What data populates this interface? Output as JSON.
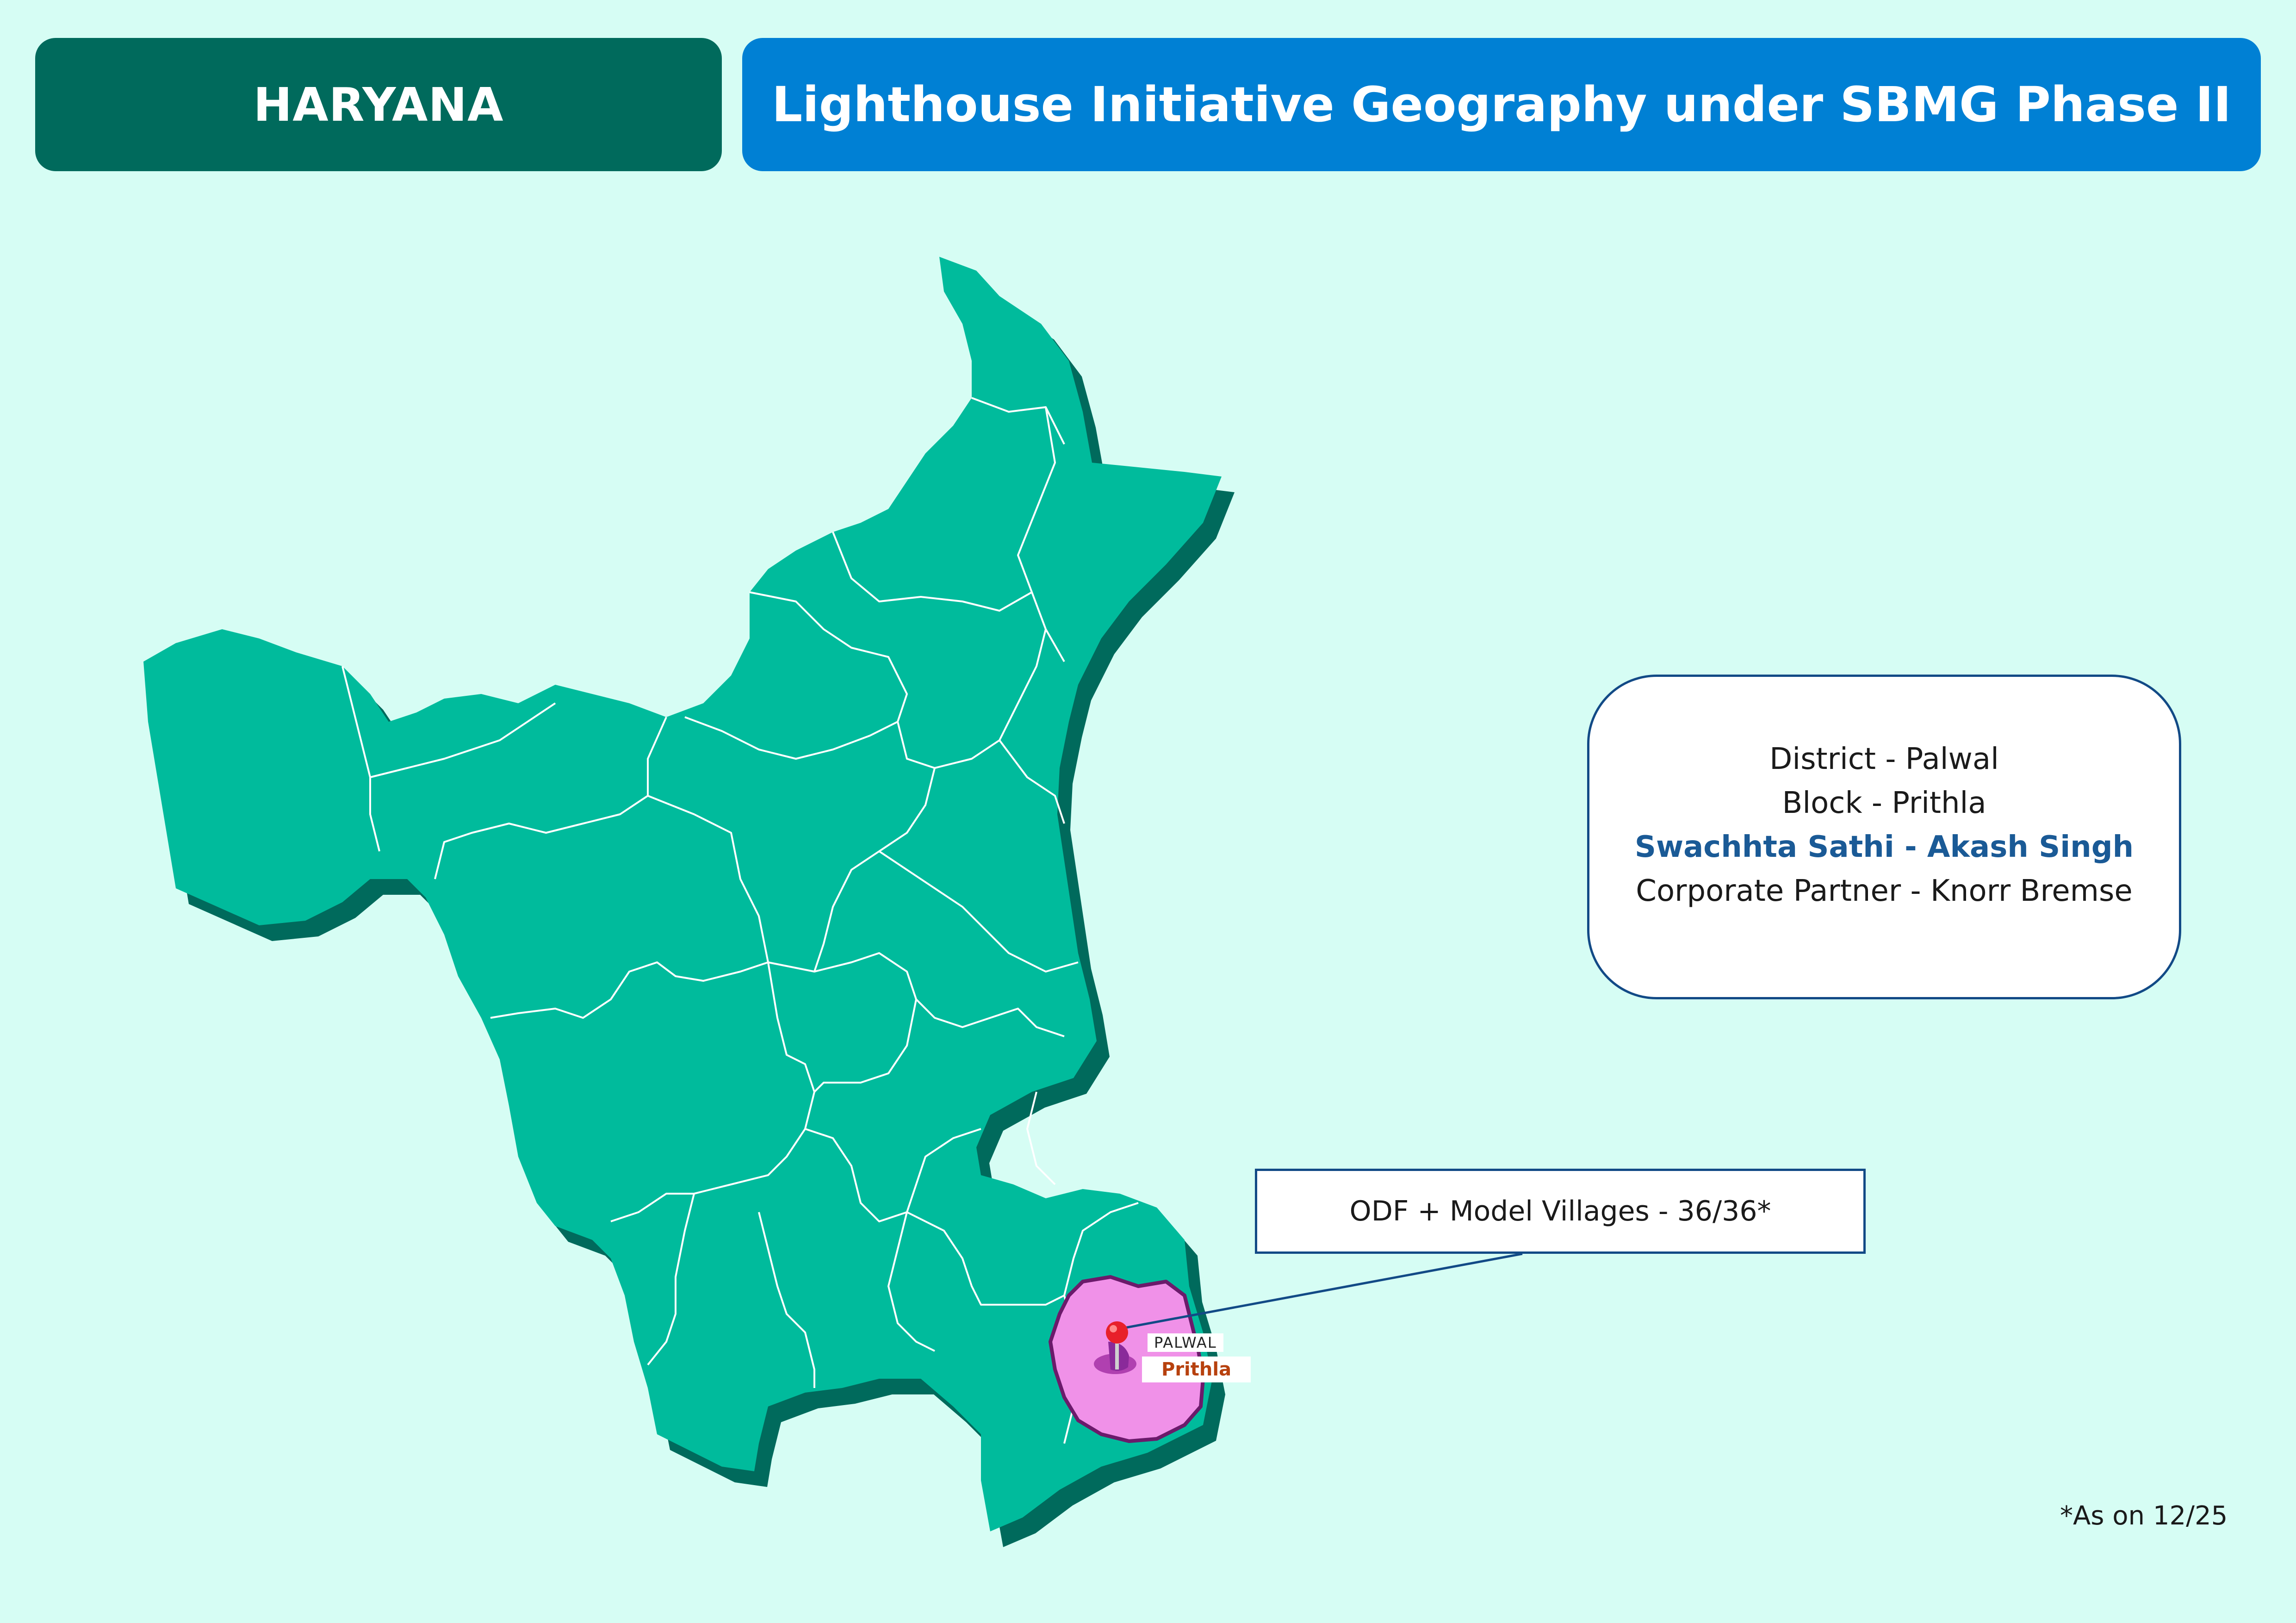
{
  "header": {
    "state": "HARYANA",
    "title": "Lighthouse Initiative Geography under SBMG Phase II"
  },
  "info": {
    "district": "District - Palwal",
    "block": "Block - Prithla",
    "swachhta_sathi": "Swachhta Sathi - Akash Singh",
    "corporate_partner": "Corporate Partner - Knorr Bremse"
  },
  "callout": {
    "odf_text": "ODF + Model Villages - 36/36*"
  },
  "map": {
    "district_label": "PALWAL",
    "block_label": "Prithla",
    "marker_icon": "map-pin-icon",
    "colors": {
      "state_fill": "#00bb9c",
      "state_shadow": "#006a5c",
      "highlight_fill": "#f091e8",
      "highlight_border": "#6b1a6b",
      "pin": "#e8202a"
    }
  },
  "footnote": "*As on 12/25"
}
